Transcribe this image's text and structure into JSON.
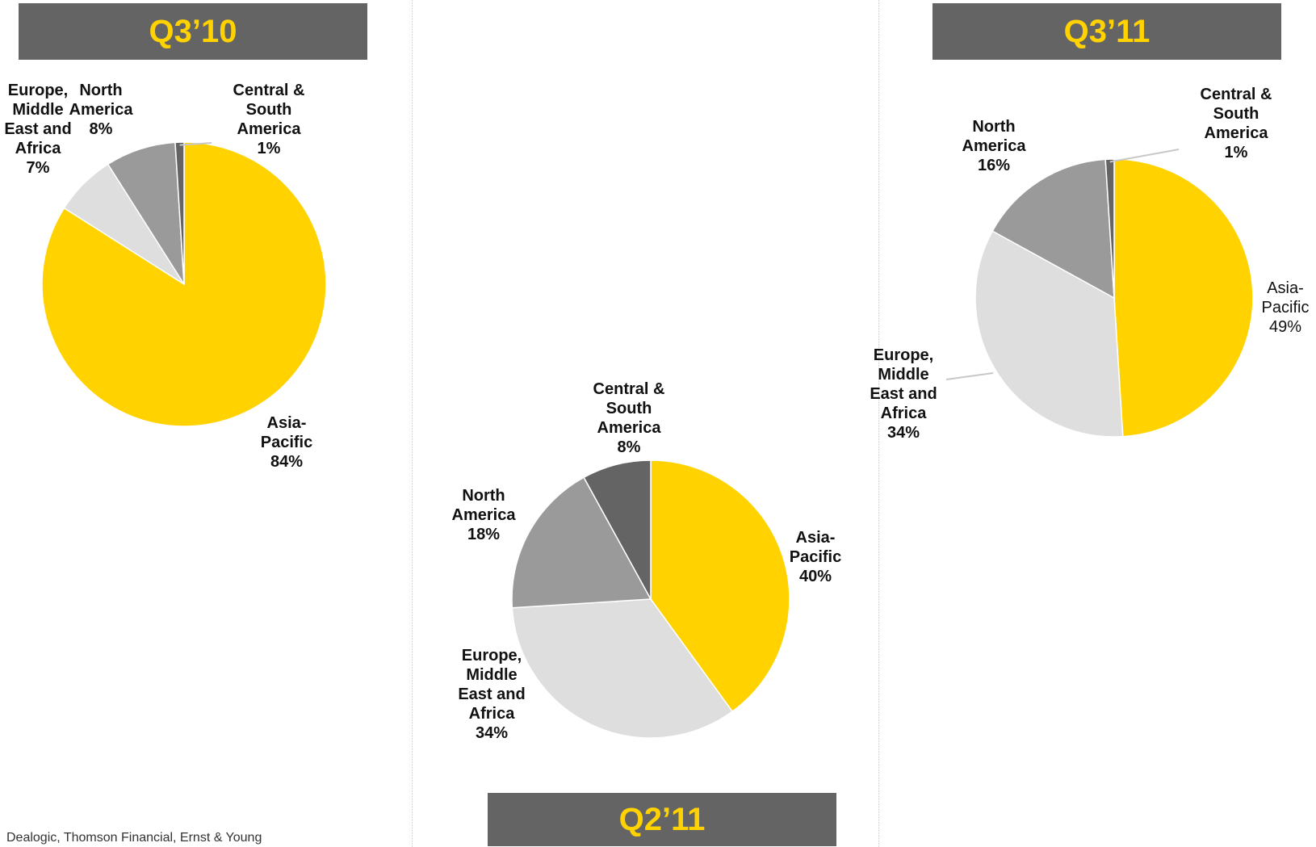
{
  "source": "Dealogic, Thomson Financial, Ernst & Young",
  "colors": {
    "banner_bg": "#646464",
    "banner_text": "#ffd200",
    "Asia-Pacific": "#ffd200",
    "Europe, Middle East and Africa": "#dedede",
    "North America": "#9a9a9a",
    "Central & South America": "#646464"
  },
  "chart_data": [
    {
      "type": "pie",
      "title": "Q3’10",
      "slices": [
        {
          "name": "Asia-Pacific",
          "lines": [
            "Asia-",
            "Pacific"
          ],
          "value": 84,
          "label": "84%"
        },
        {
          "name": "Europe, Middle East and Africa",
          "lines": [
            "Europe,",
            "Middle",
            "East and",
            "Africa"
          ],
          "value": 7,
          "label": "7%"
        },
        {
          "name": "North America",
          "lines": [
            "North",
            "America"
          ],
          "value": 8,
          "label": "8%"
        },
        {
          "name": "Central & South America",
          "lines": [
            "Central &",
            "South",
            "America"
          ],
          "value": 1,
          "label": "1%"
        }
      ]
    },
    {
      "type": "pie",
      "title": "Q2’11",
      "slices": [
        {
          "name": "Asia-Pacific",
          "lines": [
            "Asia-",
            "Pacific"
          ],
          "value": 40,
          "label": "40%"
        },
        {
          "name": "Europe, Middle East and Africa",
          "lines": [
            "Europe,",
            "Middle",
            "East and",
            "Africa"
          ],
          "value": 34,
          "label": "34%"
        },
        {
          "name": "North America",
          "lines": [
            "North",
            "America"
          ],
          "value": 18,
          "label": "18%"
        },
        {
          "name": "Central & South America",
          "lines": [
            "Central &",
            "South",
            "America"
          ],
          "value": 8,
          "label": "8%"
        }
      ]
    },
    {
      "type": "pie",
      "title": "Q3’11",
      "slices": [
        {
          "name": "Asia-Pacific",
          "lines": [
            "Asia-",
            "Pacific"
          ],
          "value": 49,
          "label": "49%"
        },
        {
          "name": "Europe, Middle East and Africa",
          "lines": [
            "Europe,",
            "Middle",
            "East and",
            "Africa"
          ],
          "value": 34,
          "label": "34%"
        },
        {
          "name": "North America",
          "lines": [
            "North",
            "America"
          ],
          "value": 16,
          "label": "16%"
        },
        {
          "name": "Central & South America",
          "lines": [
            "Central &",
            "South",
            "America"
          ],
          "value": 1,
          "label": "1%"
        }
      ]
    }
  ]
}
